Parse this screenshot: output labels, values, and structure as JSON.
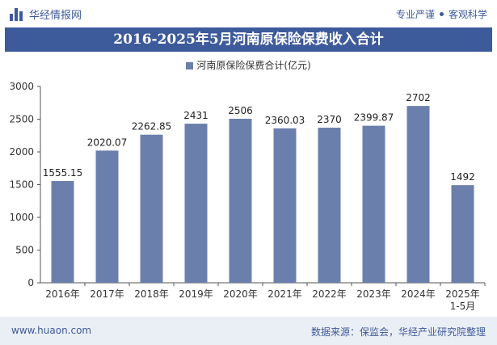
{
  "header": {
    "brand": "华经情报网",
    "tagline_left": "专业严谨",
    "tagline_right": "客观科学"
  },
  "footer": {
    "url": "www.huaon.com",
    "source": "数据来源：保监会，华经产业研究院整理"
  },
  "colors": {
    "bar": "#6b7fad",
    "title_bg": "#3d5a9b",
    "brand": "#3f5a9a"
  },
  "chart_data": {
    "type": "bar",
    "title": "2016-2025年5月河南原保险保费收入合计",
    "categories": [
      "2016年",
      "2017年",
      "2018年",
      "2019年",
      "2020年",
      "2021年",
      "2022年",
      "2023年",
      "2024年",
      "2025年\n1-5月"
    ],
    "series": [
      {
        "name": "河南原保险保费合计(亿元)",
        "values": [
          1555.15,
          2020.07,
          2262.85,
          2431,
          2506,
          2360.03,
          2370,
          2399.87,
          2702,
          1492
        ],
        "labels": [
          "1555.15",
          "2020.07",
          "2262.85",
          "2431",
          "2506",
          "2360.03",
          "2370",
          "2399.87",
          "2702",
          "1492"
        ]
      }
    ],
    "yticks": [
      "0",
      "500",
      "1000",
      "1500",
      "2000",
      "2500",
      "3000"
    ],
    "ylim": [
      0,
      3000
    ],
    "legend": "top-center",
    "grid": false
  }
}
